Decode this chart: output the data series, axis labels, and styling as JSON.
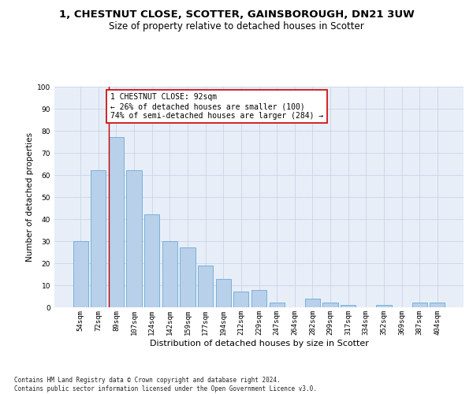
{
  "title_line1": "1, CHESTNUT CLOSE, SCOTTER, GAINSBOROUGH, DN21 3UW",
  "title_line2": "Size of property relative to detached houses in Scotter",
  "xlabel": "Distribution of detached houses by size in Scotter",
  "ylabel": "Number of detached properties",
  "bar_labels": [
    "54sqm",
    "72sqm",
    "89sqm",
    "107sqm",
    "124sqm",
    "142sqm",
    "159sqm",
    "177sqm",
    "194sqm",
    "212sqm",
    "229sqm",
    "247sqm",
    "264sqm",
    "282sqm",
    "299sqm",
    "317sqm",
    "334sqm",
    "352sqm",
    "369sqm",
    "387sqm",
    "404sqm"
  ],
  "bar_values": [
    30,
    62,
    77,
    62,
    42,
    30,
    27,
    19,
    13,
    7,
    8,
    2,
    0,
    4,
    2,
    1,
    0,
    1,
    0,
    2,
    2
  ],
  "bar_color": "#b8d0ea",
  "bar_edge_color": "#6aaad4",
  "grid_color": "#c8d4e8",
  "background_color": "#e8eef8",
  "vline_x_idx": 2,
  "vline_color": "#c00000",
  "annotation_text": "1 CHESTNUT CLOSE: 92sqm\n← 26% of detached houses are smaller (100)\n74% of semi-detached houses are larger (284) →",
  "annotation_box_color": "#ffffff",
  "annotation_border_color": "#cc0000",
  "ylim": [
    0,
    100
  ],
  "yticks": [
    0,
    10,
    20,
    30,
    40,
    50,
    60,
    70,
    80,
    90,
    100
  ],
  "footnote": "Contains HM Land Registry data © Crown copyright and database right 2024.\nContains public sector information licensed under the Open Government Licence v3.0.",
  "title_fontsize": 9.5,
  "subtitle_fontsize": 8.5,
  "xlabel_fontsize": 8,
  "ylabel_fontsize": 7.5,
  "tick_fontsize": 6.5,
  "annotation_fontsize": 7,
  "footnote_fontsize": 5.5
}
